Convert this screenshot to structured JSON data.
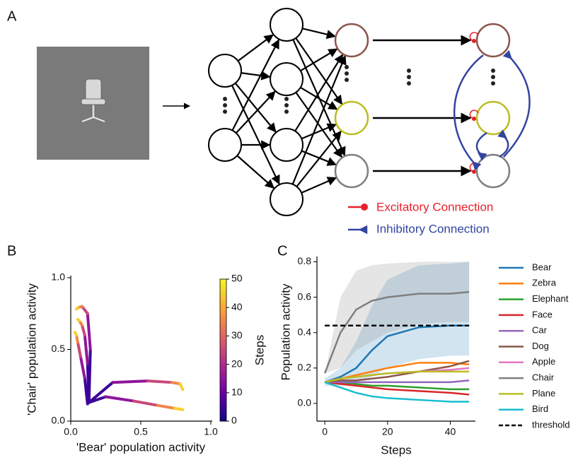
{
  "panel_labels": [
    "A",
    "B",
    "C"
  ],
  "panel_a": {
    "legend": [
      "Excitatory Connection",
      "Inhibitory Connection"
    ]
  },
  "chart_data": [
    {
      "type": "trajectory",
      "xlabel": "'Bear' population activity",
      "ylabel": "'Chair' population activity",
      "xlim": [
        0,
        1
      ],
      "ylim": [
        0,
        1
      ],
      "xticks": [
        {
          "value": 0,
          "label": "0.0"
        },
        0.5,
        {
          "value": 1,
          "label": "1.0"
        }
      ],
      "yticks": [
        {
          "value": 0,
          "label": "0.0"
        },
        0.5,
        {
          "value": 1,
          "label": "1.0"
        }
      ],
      "steps": [
        0,
        10,
        20,
        30,
        40,
        50
      ],
      "series": [
        {
          "x": [
            0.13,
            0.14,
            0.12,
            0.08,
            0.05,
            0.04
          ],
          "y": [
            0.13,
            0.5,
            0.75,
            0.8,
            0.79,
            0.78
          ]
        },
        {
          "x": [
            0.13,
            0.12,
            0.1,
            0.08,
            0.06,
            0.05
          ],
          "y": [
            0.13,
            0.4,
            0.6,
            0.67,
            0.7,
            0.71
          ]
        },
        {
          "x": [
            0.12,
            0.1,
            0.07,
            0.05,
            0.04,
            0.03
          ],
          "y": [
            0.12,
            0.3,
            0.45,
            0.55,
            0.6,
            0.62
          ]
        },
        {
          "x": [
            0.13,
            0.3,
            0.55,
            0.72,
            0.78,
            0.8
          ],
          "y": [
            0.13,
            0.27,
            0.28,
            0.27,
            0.26,
            0.22
          ]
        },
        {
          "x": [
            0.13,
            0.25,
            0.45,
            0.62,
            0.74,
            0.8
          ],
          "y": [
            0.13,
            0.17,
            0.14,
            0.11,
            0.09,
            0.08
          ]
        }
      ],
      "colorbar": {
        "label": "Steps",
        "clim": [
          0,
          50
        ],
        "ticks": [
          0,
          10,
          20,
          30,
          40,
          50
        ],
        "colormap": [
          "#0d0887",
          "#6a00a8",
          "#b12a90",
          "#e16462",
          "#fca636",
          "#f0f921"
        ]
      }
    },
    {
      "type": "line",
      "xlabel": "Steps",
      "ylabel": "Population activity",
      "x": [
        0,
        5,
        10,
        15,
        20,
        30,
        40,
        46
      ],
      "xlim": [
        -2.5,
        48
      ],
      "ylim": [
        -0.1,
        0.83
      ],
      "xticks": [
        0,
        20,
        40
      ],
      "yticks": [
        {
          "value": 0,
          "label": "0.0"
        },
        0.2,
        0.4,
        0.6,
        0.8
      ],
      "series": [
        {
          "name": "Bear",
          "color": "#1f77b4",
          "values": [
            0.12,
            0.15,
            0.2,
            0.3,
            0.38,
            0.43,
            0.44,
            0.44
          ],
          "lower": [
            0.1,
            0.1,
            0.12,
            0.15,
            0.2,
            0.25,
            0.27,
            0.27
          ],
          "upper": [
            0.14,
            0.2,
            0.35,
            0.55,
            0.7,
            0.78,
            0.79,
            0.8
          ]
        },
        {
          "name": "Zebra",
          "color": "#ff7f0e",
          "values": [
            0.12,
            0.14,
            0.16,
            0.18,
            0.2,
            0.23,
            0.23,
            0.22
          ]
        },
        {
          "name": "Elephant",
          "color": "#2ca02c",
          "values": [
            0.12,
            0.12,
            0.11,
            0.1,
            0.1,
            0.09,
            0.08,
            0.08
          ]
        },
        {
          "name": "Face",
          "color": "#d62728",
          "values": [
            0.12,
            0.11,
            0.1,
            0.09,
            0.08,
            0.07,
            0.06,
            0.05
          ]
        },
        {
          "name": "Car",
          "color": "#9467bd",
          "values": [
            0.12,
            0.12,
            0.12,
            0.12,
            0.12,
            0.12,
            0.12,
            0.13
          ]
        },
        {
          "name": "Dog",
          "color": "#8c564b",
          "values": [
            0.12,
            0.13,
            0.13,
            0.14,
            0.15,
            0.18,
            0.21,
            0.24
          ]
        },
        {
          "name": "Apple",
          "color": "#e377c2",
          "values": [
            0.12,
            0.14,
            0.15,
            0.16,
            0.17,
            0.18,
            0.19,
            0.2
          ]
        },
        {
          "name": "Chair",
          "color": "#7f7f7f",
          "values": [
            0.17,
            0.4,
            0.53,
            0.58,
            0.6,
            0.62,
            0.62,
            0.63
          ],
          "lower": [
            0.17,
            0.2,
            0.3,
            0.35,
            0.4,
            0.45,
            0.46,
            0.46
          ],
          "upper": [
            0.17,
            0.6,
            0.75,
            0.78,
            0.79,
            0.8,
            0.8,
            0.8
          ]
        },
        {
          "name": "Plane",
          "color": "#bcbd22",
          "values": [
            0.12,
            0.14,
            0.15,
            0.16,
            0.17,
            0.18,
            0.18,
            0.18
          ]
        },
        {
          "name": "Bird",
          "color": "#17becf",
          "values": [
            0.12,
            0.09,
            0.06,
            0.04,
            0.03,
            0.02,
            0.01,
            0.01
          ]
        },
        {
          "name": "threshold",
          "color": "#000000",
          "dashed": true,
          "values": [
            0.44,
            0.44,
            0.44,
            0.44,
            0.44,
            0.44,
            0.44,
            0.44
          ]
        }
      ]
    }
  ]
}
